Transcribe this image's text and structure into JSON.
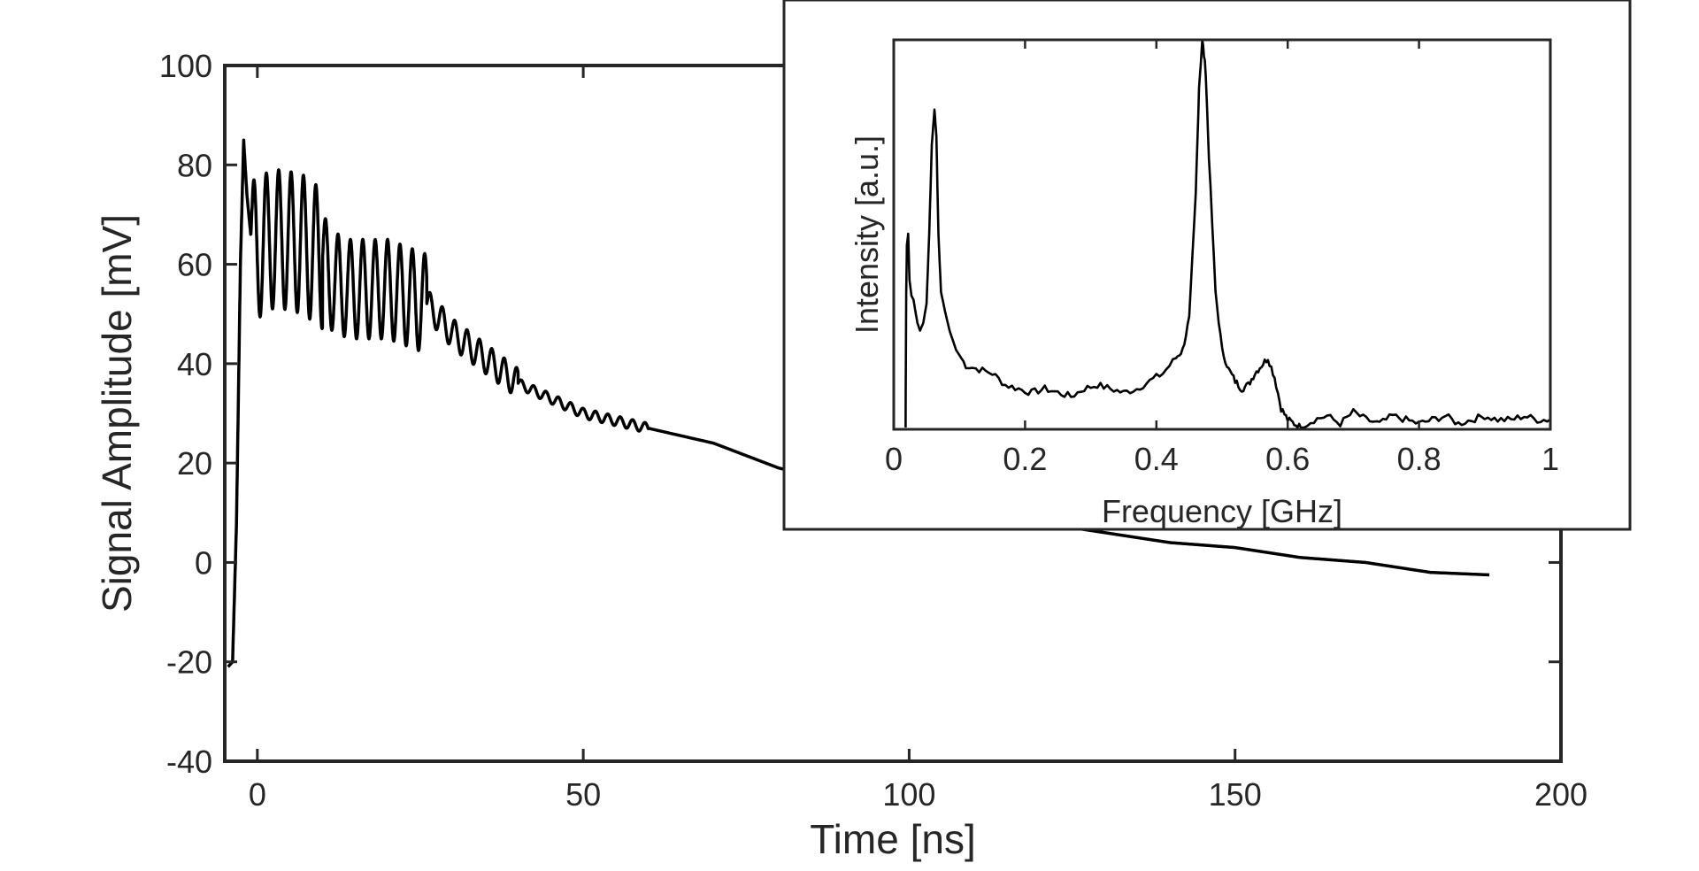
{
  "chart_data": [
    {
      "type": "line",
      "xlabel": "Time [ns]",
      "ylabel": "Signal Amplitude [mV]",
      "xlim": [
        -5,
        200
      ],
      "ylim": [
        -40,
        100
      ],
      "xticks": [
        0,
        50,
        100,
        150,
        200
      ],
      "yticks": [
        -40,
        -20,
        0,
        20,
        40,
        60,
        80,
        100
      ],
      "xtick_labels": [
        "0",
        "50",
        "100",
        "150",
        "200"
      ],
      "ytick_labels": [
        "-40",
        "-20",
        "0",
        "20",
        "40",
        "60",
        "80",
        "100"
      ],
      "grid": false,
      "line_color": "#000000",
      "series": [
        {
          "x": [
            -4.5,
            -3.8,
            -3.2,
            -2.6,
            -2.1,
            -1.6,
            -0.8,
            0.0,
            1.0,
            2.0,
            4.0,
            7.0,
            10.0,
            11.0,
            14.0,
            20.0,
            26.0,
            30.0,
            35.0,
            40.0,
            45.0,
            50.0,
            60.0,
            70.0,
            80.0,
            90.0,
            100.0,
            110.0,
            120.0,
            130.0,
            140.0,
            150.0,
            160.0,
            170.0,
            180.0,
            189.0
          ],
          "y": [
            -21,
            -20,
            8,
            60,
            85,
            74,
            63,
            63,
            64,
            65,
            65,
            64,
            61,
            57,
            55,
            55,
            52,
            46,
            41,
            36,
            33,
            30,
            27,
            24,
            19,
            16,
            13,
            10,
            8,
            6,
            4,
            3,
            1,
            0,
            -2,
            -2.5
          ]
        }
      ],
      "oscillation_periods": [
        {
          "x_start": -1.0,
          "x_end": 10.0,
          "amplitude": 14,
          "period": 1.9
        },
        {
          "x_start": 10.0,
          "x_end": 26.0,
          "amplitude": 10,
          "period": 1.9
        },
        {
          "x_start": 26.0,
          "x_end": 40.0,
          "amplitude": 3,
          "period": 1.9
        },
        {
          "x_start": 40.0,
          "x_end": 60.0,
          "amplitude": 1,
          "period": 1.9
        }
      ]
    },
    {
      "type": "line",
      "position": "inset top-right",
      "xlabel": "Frequency [GHz]",
      "ylabel": "Intensity [a.u.]",
      "xlim": [
        0,
        1
      ],
      "ylim": [
        0,
        1
      ],
      "xticks": [
        0,
        0.2,
        0.4,
        0.6,
        0.8,
        1
      ],
      "xtick_labels": [
        "0",
        "0.2",
        "0.4",
        "0.6",
        "0.8",
        "1"
      ],
      "ytick_labels": [],
      "grid": false,
      "line_color": "#000000",
      "series": [
        {
          "x": [
            0.018,
            0.019,
            0.02,
            0.022,
            0.024,
            0.027,
            0.03,
            0.033,
            0.036,
            0.04,
            0.045,
            0.05,
            0.054,
            0.058,
            0.062,
            0.065,
            0.068,
            0.072,
            0.078,
            0.085,
            0.095,
            0.11,
            0.13,
            0.15,
            0.17,
            0.19,
            0.21,
            0.23,
            0.25,
            0.27,
            0.29,
            0.31,
            0.33,
            0.35,
            0.37,
            0.39,
            0.41,
            0.43,
            0.44,
            0.45,
            0.46,
            0.465,
            0.47,
            0.475,
            0.48,
            0.49,
            0.5,
            0.51,
            0.52,
            0.53,
            0.54,
            0.55,
            0.56,
            0.57,
            0.58,
            0.59,
            0.6,
            0.61,
            0.62,
            0.64,
            0.66,
            0.68,
            0.7,
            0.72,
            0.74,
            0.76,
            0.78,
            0.8,
            0.82,
            0.84,
            0.86,
            0.88,
            0.9,
            0.92,
            0.94,
            0.96,
            0.98,
            1.0
          ],
          "y": [
            0.0,
            0.35,
            0.47,
            0.5,
            0.38,
            0.34,
            0.33,
            0.3,
            0.27,
            0.25,
            0.27,
            0.32,
            0.5,
            0.73,
            0.82,
            0.75,
            0.5,
            0.35,
            0.3,
            0.25,
            0.2,
            0.16,
            0.15,
            0.14,
            0.11,
            0.1,
            0.09,
            0.1,
            0.09,
            0.08,
            0.1,
            0.11,
            0.1,
            0.09,
            0.1,
            0.12,
            0.14,
            0.18,
            0.2,
            0.28,
            0.6,
            0.88,
            1.0,
            0.92,
            0.7,
            0.35,
            0.2,
            0.15,
            0.12,
            0.1,
            0.11,
            0.14,
            0.16,
            0.18,
            0.13,
            0.05,
            0.02,
            0.01,
            0.0,
            0.02,
            0.03,
            0.01,
            0.04,
            0.02,
            0.01,
            0.03,
            0.02,
            0.01,
            0.02,
            0.03,
            0.01,
            0.02,
            0.03,
            0.02,
            0.02,
            0.03,
            0.02,
            0.02
          ]
        }
      ]
    }
  ]
}
